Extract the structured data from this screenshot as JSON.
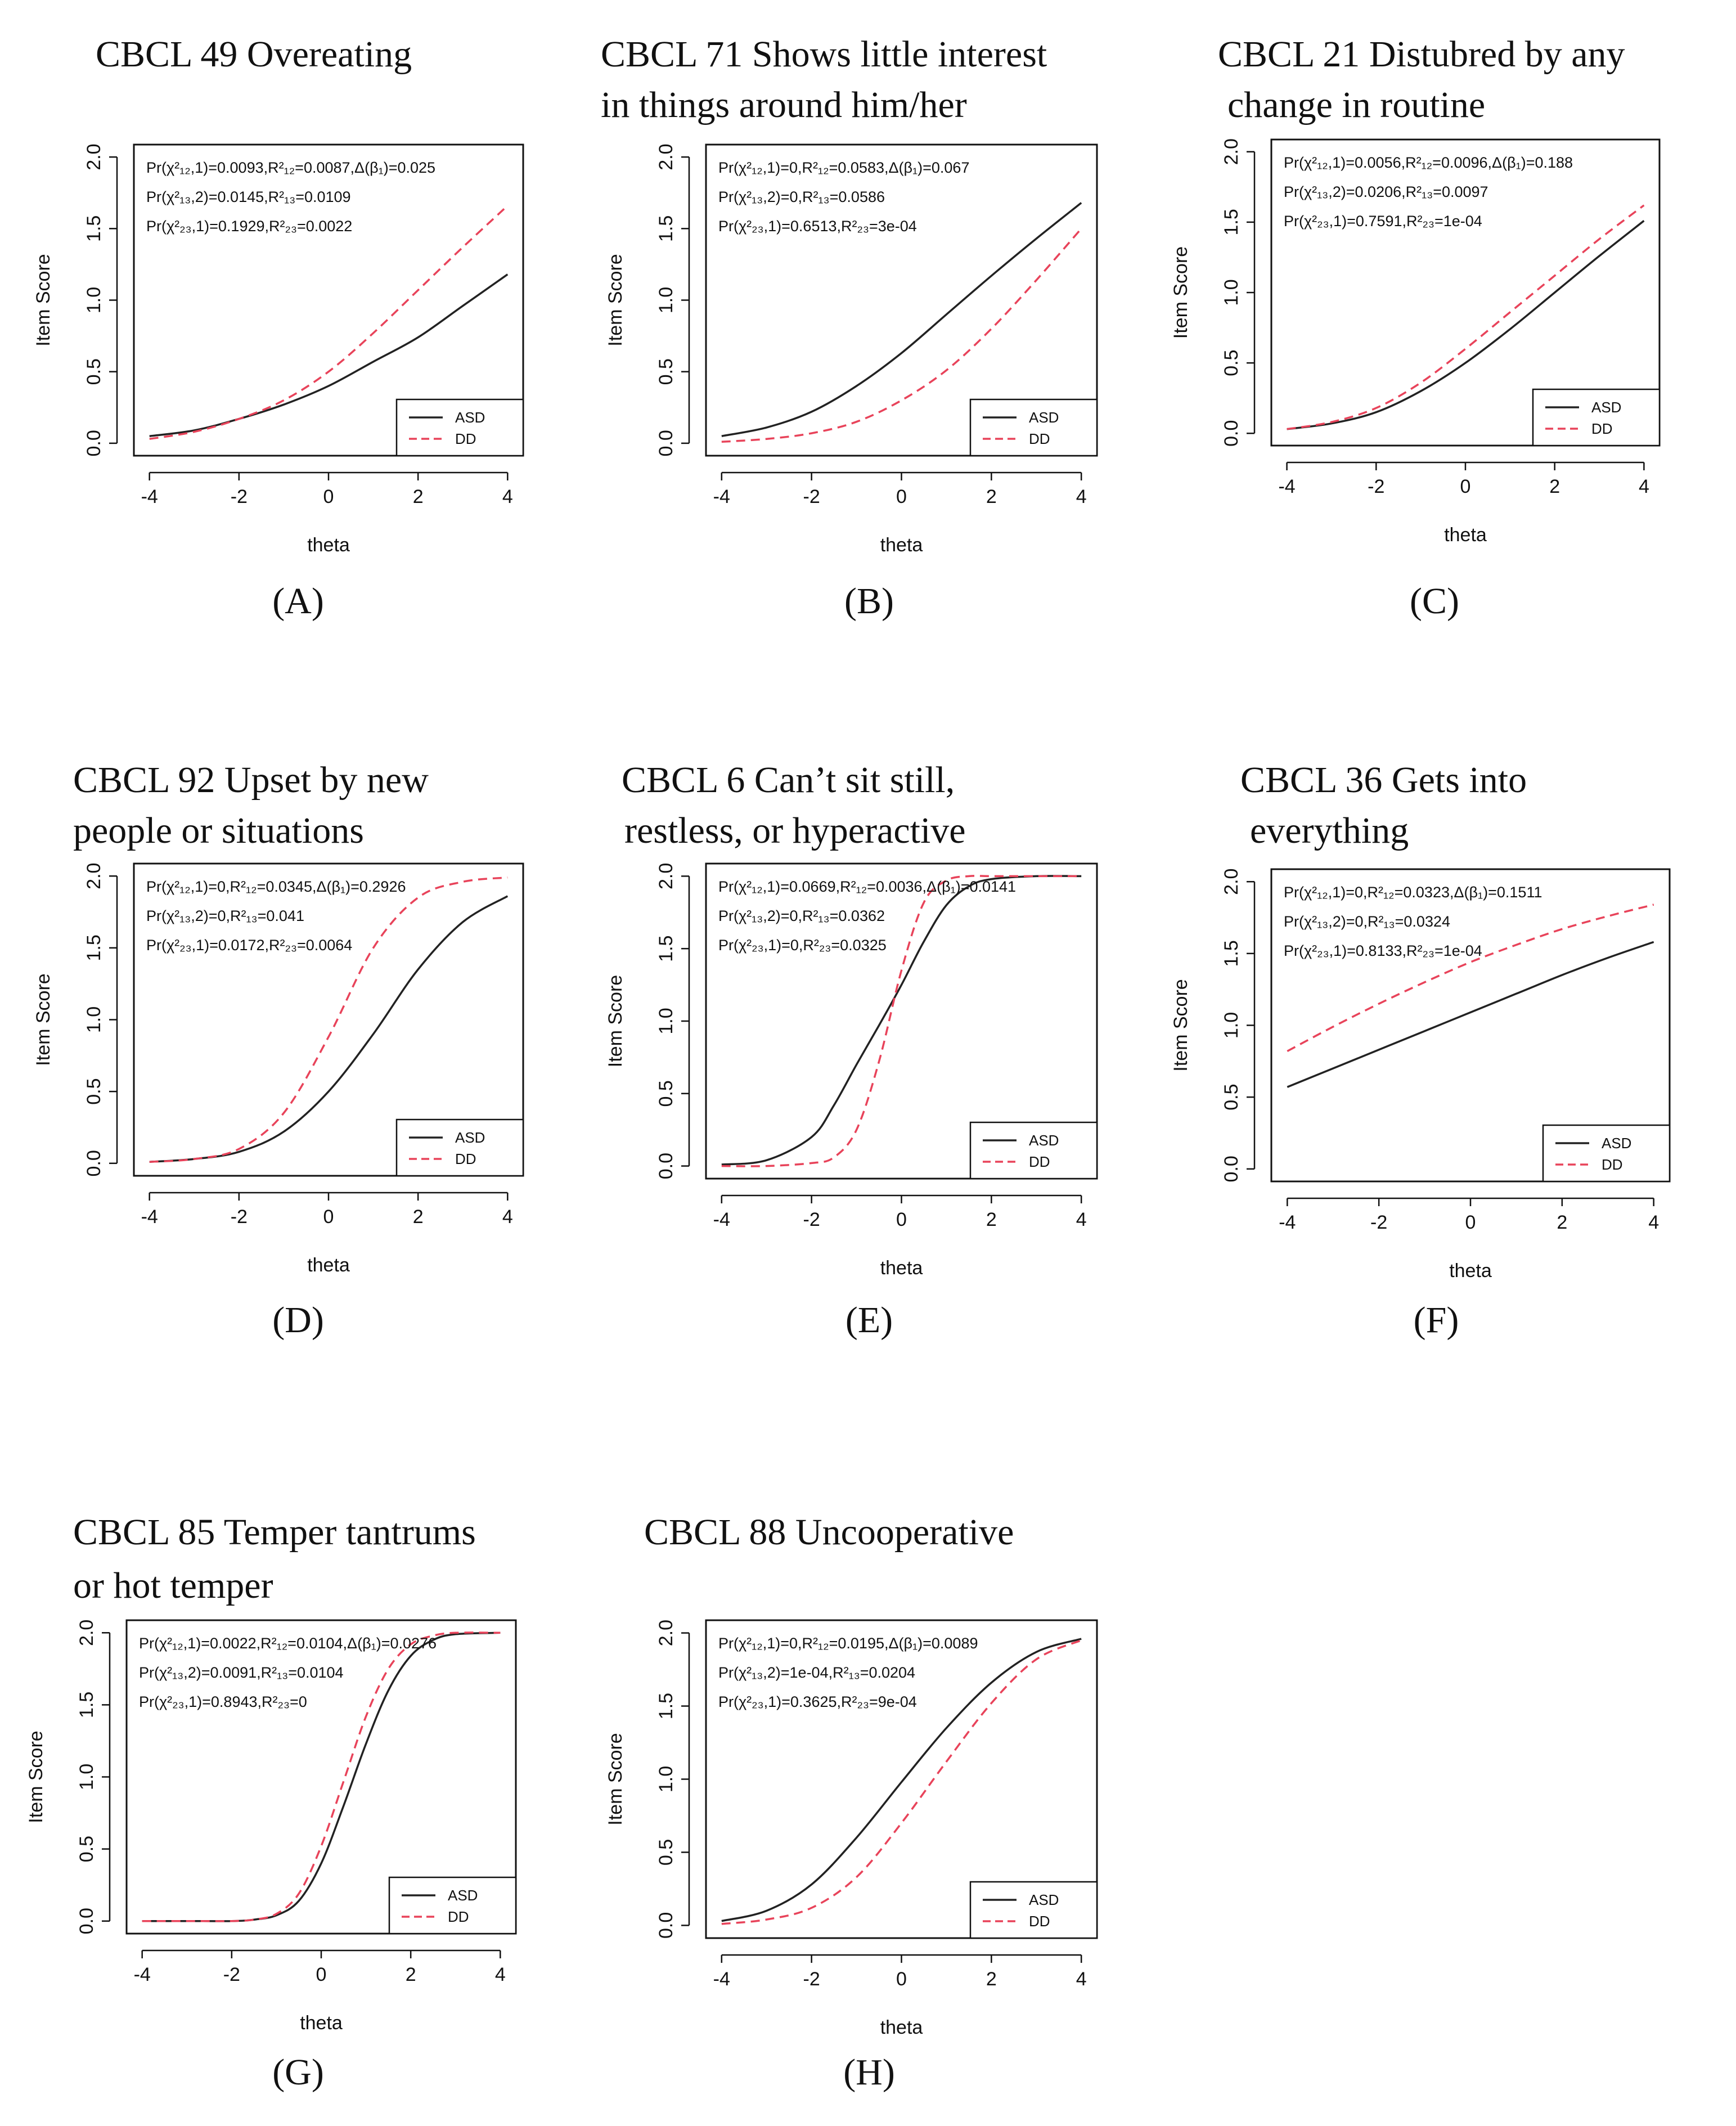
{
  "colors": {
    "asd": "#222222",
    "dd": "#e8435a"
  },
  "chart_data": [
    {
      "panel": "(A)",
      "type": "line",
      "title": [
        "CBCL 49 Overeating"
      ],
      "xlabel": "theta",
      "ylabel": "Item Score",
      "xlim": [
        -4,
        4
      ],
      "ylim": [
        0,
        2
      ],
      "xticks": [
        "-4",
        "-2",
        "0",
        "2",
        "4"
      ],
      "yticks": [
        "0.0",
        "0.5",
        "1.0",
        "1.5",
        "2.0"
      ],
      "stats": [
        "Pr(χ²₁₂,1)=0.0093,R²₁₂=0.0087,Δ(β₁)=0.025",
        "Pr(χ²₁₃,2)=0.0145,R²₁₃=0.0109",
        "Pr(χ²₂₃,1)=0.1929,R²₂₃=0.0022"
      ],
      "legend": [
        "ASD",
        "DD"
      ],
      "x": [
        -4,
        -3,
        -2,
        -1,
        0,
        1,
        2,
        3,
        4
      ],
      "series": [
        {
          "name": "ASD",
          "values": [
            0.05,
            0.09,
            0.17,
            0.27,
            0.4,
            0.57,
            0.74,
            0.96,
            1.18
          ]
        },
        {
          "name": "DD",
          "values": [
            0.03,
            0.08,
            0.17,
            0.3,
            0.5,
            0.77,
            1.07,
            1.37,
            1.66
          ]
        }
      ]
    },
    {
      "panel": "(B)",
      "type": "line",
      "title": [
        "CBCL 71 Shows little interest",
        "in things around him/her"
      ],
      "xlabel": "theta",
      "ylabel": "Item Score",
      "xlim": [
        -4,
        4
      ],
      "ylim": [
        0,
        2
      ],
      "xticks": [
        "-4",
        "-2",
        "0",
        "2",
        "4"
      ],
      "yticks": [
        "0.0",
        "0.5",
        "1.0",
        "1.5",
        "2.0"
      ],
      "stats": [
        "Pr(χ²₁₂,1)=0,R²₁₂=0.0583,Δ(β₁)=0.067",
        "Pr(χ²₁₃,2)=0,R²₁₃=0.0586",
        "Pr(χ²₂₃,1)=0.6513,R²₂₃=3e-04"
      ],
      "legend": [
        "ASD",
        "DD"
      ],
      "x": [
        -4,
        -3,
        -2,
        -1,
        0,
        1,
        2,
        3,
        4
      ],
      "series": [
        {
          "name": "ASD",
          "values": [
            0.05,
            0.11,
            0.22,
            0.4,
            0.63,
            0.9,
            1.17,
            1.43,
            1.68
          ]
        },
        {
          "name": "DD",
          "values": [
            0.01,
            0.03,
            0.07,
            0.15,
            0.3,
            0.51,
            0.8,
            1.14,
            1.5
          ]
        }
      ]
    },
    {
      "panel": "(C)",
      "type": "line",
      "title": [
        "CBCL 21 Distubred by any",
        "change in routine"
      ],
      "xlabel": "theta",
      "ylabel": "Item Score",
      "xlim": [
        -4,
        4
      ],
      "ylim": [
        0,
        2
      ],
      "xticks": [
        "-4",
        "-2",
        "0",
        "2",
        "4"
      ],
      "yticks": [
        "0.0",
        "0.5",
        "1.0",
        "1.5",
        "2.0"
      ],
      "stats": [
        "Pr(χ²₁₂,1)=0.0056,R²₁₂=0.0096,Δ(β₁)=0.188",
        "Pr(χ²₁₃,2)=0.0206,R²₁₃=0.0097",
        "Pr(χ²₂₃,1)=0.7591,R²₂₃=1e-04"
      ],
      "legend": [
        "ASD",
        "DD"
      ],
      "x": [
        -4,
        -3,
        -2,
        -1,
        0,
        1,
        2,
        3,
        4
      ],
      "series": [
        {
          "name": "ASD",
          "values": [
            0.03,
            0.07,
            0.15,
            0.3,
            0.5,
            0.74,
            1.0,
            1.26,
            1.51
          ]
        },
        {
          "name": "DD",
          "values": [
            0.03,
            0.08,
            0.18,
            0.36,
            0.6,
            0.86,
            1.12,
            1.38,
            1.62
          ]
        }
      ]
    },
    {
      "panel": "(D)",
      "type": "line",
      "title": [
        "CBCL 92 Upset by new",
        "people or situations"
      ],
      "xlabel": "theta",
      "ylabel": "Item Score",
      "xlim": [
        -4,
        4
      ],
      "ylim": [
        0,
        2
      ],
      "xticks": [
        "-4",
        "-2",
        "0",
        "2",
        "4"
      ],
      "yticks": [
        "0.0",
        "0.5",
        "1.0",
        "1.5",
        "2.0"
      ],
      "stats": [
        "Pr(χ²₁₂,1)=0,R²₁₂=0.0345,Δ(β₁)=0.2926",
        "Pr(χ²₁₃,2)=0,R²₁₃=0.041",
        "Pr(χ²₂₃,1)=0.0172,R²₂₃=0.0064"
      ],
      "legend": [
        "ASD",
        "DD"
      ],
      "x": [
        -4,
        -3,
        -2,
        -1,
        0,
        1,
        2,
        3,
        4
      ],
      "series": [
        {
          "name": "ASD",
          "values": [
            0.01,
            0.03,
            0.08,
            0.22,
            0.5,
            0.9,
            1.35,
            1.68,
            1.86
          ]
        },
        {
          "name": "DD",
          "values": [
            0.01,
            0.03,
            0.1,
            0.35,
            0.88,
            1.5,
            1.85,
            1.96,
            1.99
          ]
        }
      ]
    },
    {
      "panel": "(E)",
      "type": "line",
      "title": [
        "CBCL 6 Can’t sit still,",
        "restless, or hyperactive"
      ],
      "xlabel": "theta",
      "ylabel": "Item Score",
      "xlim": [
        -4,
        4
      ],
      "ylim": [
        0,
        2
      ],
      "xticks": [
        "-4",
        "-2",
        "0",
        "2",
        "4"
      ],
      "yticks": [
        "0.0",
        "0.5",
        "1.0",
        "1.5",
        "2.0"
      ],
      "stats": [
        "Pr(χ²₁₂,1)=0.0669,R²₁₂=0.0036,Δ(β₁)=0.0141",
        "Pr(χ²₁₃,2)=0,R²₁₃=0.0362",
        "Pr(χ²₂₃,1)=0,R²₂₃=0.0325"
      ],
      "legend": [
        "ASD",
        "DD"
      ],
      "x": [
        -4,
        -3,
        -2,
        -1.5,
        -1,
        -0.5,
        0,
        0.5,
        1,
        1.5,
        2,
        3,
        4
      ],
      "series": [
        {
          "name": "ASD",
          "values": [
            0.01,
            0.04,
            0.2,
            0.42,
            0.7,
            0.97,
            1.25,
            1.55,
            1.8,
            1.93,
            1.98,
            2.0,
            2.0
          ]
        },
        {
          "name": "DD",
          "values": [
            0.0,
            0.0,
            0.02,
            0.06,
            0.25,
            0.72,
            1.35,
            1.82,
            1.97,
            2.0,
            2.0,
            2.0,
            2.0
          ]
        }
      ]
    },
    {
      "panel": "(F)",
      "type": "line",
      "title": [
        "CBCL 36 Gets into",
        "everything"
      ],
      "xlabel": "theta",
      "ylabel": "Item Score",
      "xlim": [
        -4,
        4
      ],
      "ylim": [
        0,
        2
      ],
      "xticks": [
        "-4",
        "-2",
        "0",
        "2",
        "4"
      ],
      "yticks": [
        "0.0",
        "0.5",
        "1.0",
        "1.5",
        "2.0"
      ],
      "stats": [
        "Pr(χ²₁₂,1)=0,R²₁₂=0.0323,Δ(β₁)=0.1511",
        "Pr(χ²₁₃,2)=0,R²₁₃=0.0324",
        "Pr(χ²₂₃,1)=0.8133,R²₂₃=1e-04"
      ],
      "legend": [
        "ASD",
        "DD"
      ],
      "x": [
        -4,
        -3,
        -2,
        -1,
        0,
        1,
        2,
        3,
        4
      ],
      "series": [
        {
          "name": "ASD",
          "values": [
            0.57,
            0.7,
            0.83,
            0.96,
            1.09,
            1.22,
            1.35,
            1.47,
            1.58
          ]
        },
        {
          "name": "DD",
          "values": [
            0.82,
            0.99,
            1.15,
            1.3,
            1.44,
            1.56,
            1.67,
            1.76,
            1.84
          ]
        }
      ]
    },
    {
      "panel": "(G)",
      "type": "line",
      "title": [
        "CBCL 85 Temper tantrums",
        "or hot temper"
      ],
      "xlabel": "theta",
      "ylabel": "Item Score",
      "xlim": [
        -4,
        4
      ],
      "ylim": [
        0,
        2
      ],
      "xticks": [
        "-4",
        "-2",
        "0",
        "2",
        "4"
      ],
      "yticks": [
        "0.0",
        "0.5",
        "1.0",
        "1.5",
        "2.0"
      ],
      "stats": [
        "Pr(χ²₁₂,1)=0.0022,R²₁₂=0.0104,Δ(β₁)=0.0276",
        "Pr(χ²₁₃,2)=0.0091,R²₁₃=0.0104",
        "Pr(χ²₂₃,1)=0.8943,R²₂₃=0"
      ],
      "legend": [
        "ASD",
        "DD"
      ],
      "x": [
        -4,
        -3,
        -2,
        -1.5,
        -1,
        -0.5,
        0,
        0.5,
        1,
        1.5,
        2,
        2.5,
        3,
        4
      ],
      "series": [
        {
          "name": "ASD",
          "values": [
            0.0,
            0.0,
            0.0,
            0.01,
            0.04,
            0.14,
            0.4,
            0.8,
            1.23,
            1.6,
            1.84,
            1.95,
            1.99,
            2.0
          ]
        },
        {
          "name": "DD",
          "values": [
            0.0,
            0.0,
            0.0,
            0.01,
            0.05,
            0.19,
            0.52,
            0.97,
            1.42,
            1.75,
            1.92,
            1.98,
            2.0,
            2.0
          ]
        }
      ]
    },
    {
      "panel": "(H)",
      "type": "line",
      "title": [
        "CBCL 88 Uncooperative"
      ],
      "xlabel": "theta",
      "ylabel": "Item Score",
      "xlim": [
        -4,
        4
      ],
      "ylim": [
        0,
        2
      ],
      "xticks": [
        "-4",
        "-2",
        "0",
        "2",
        "4"
      ],
      "yticks": [
        "0.0",
        "0.5",
        "1.0",
        "1.5",
        "2.0"
      ],
      "stats": [
        "Pr(χ²₁₂,1)=0,R²₁₂=0.0195,Δ(β₁)=0.0089",
        "Pr(χ²₁₃,2)=1e-04,R²₁₃=0.0204",
        "Pr(χ²₂₃,1)=0.3625,R²₂₃=9e-04"
      ],
      "legend": [
        "ASD",
        "DD"
      ],
      "x": [
        -4,
        -3,
        -2,
        -1,
        0,
        1,
        2,
        3,
        4
      ],
      "series": [
        {
          "name": "ASD",
          "values": [
            0.03,
            0.1,
            0.28,
            0.6,
            0.98,
            1.35,
            1.66,
            1.87,
            1.96
          ]
        },
        {
          "name": "DD",
          "values": [
            0.01,
            0.04,
            0.12,
            0.33,
            0.7,
            1.12,
            1.52,
            1.82,
            1.95
          ]
        }
      ]
    }
  ]
}
